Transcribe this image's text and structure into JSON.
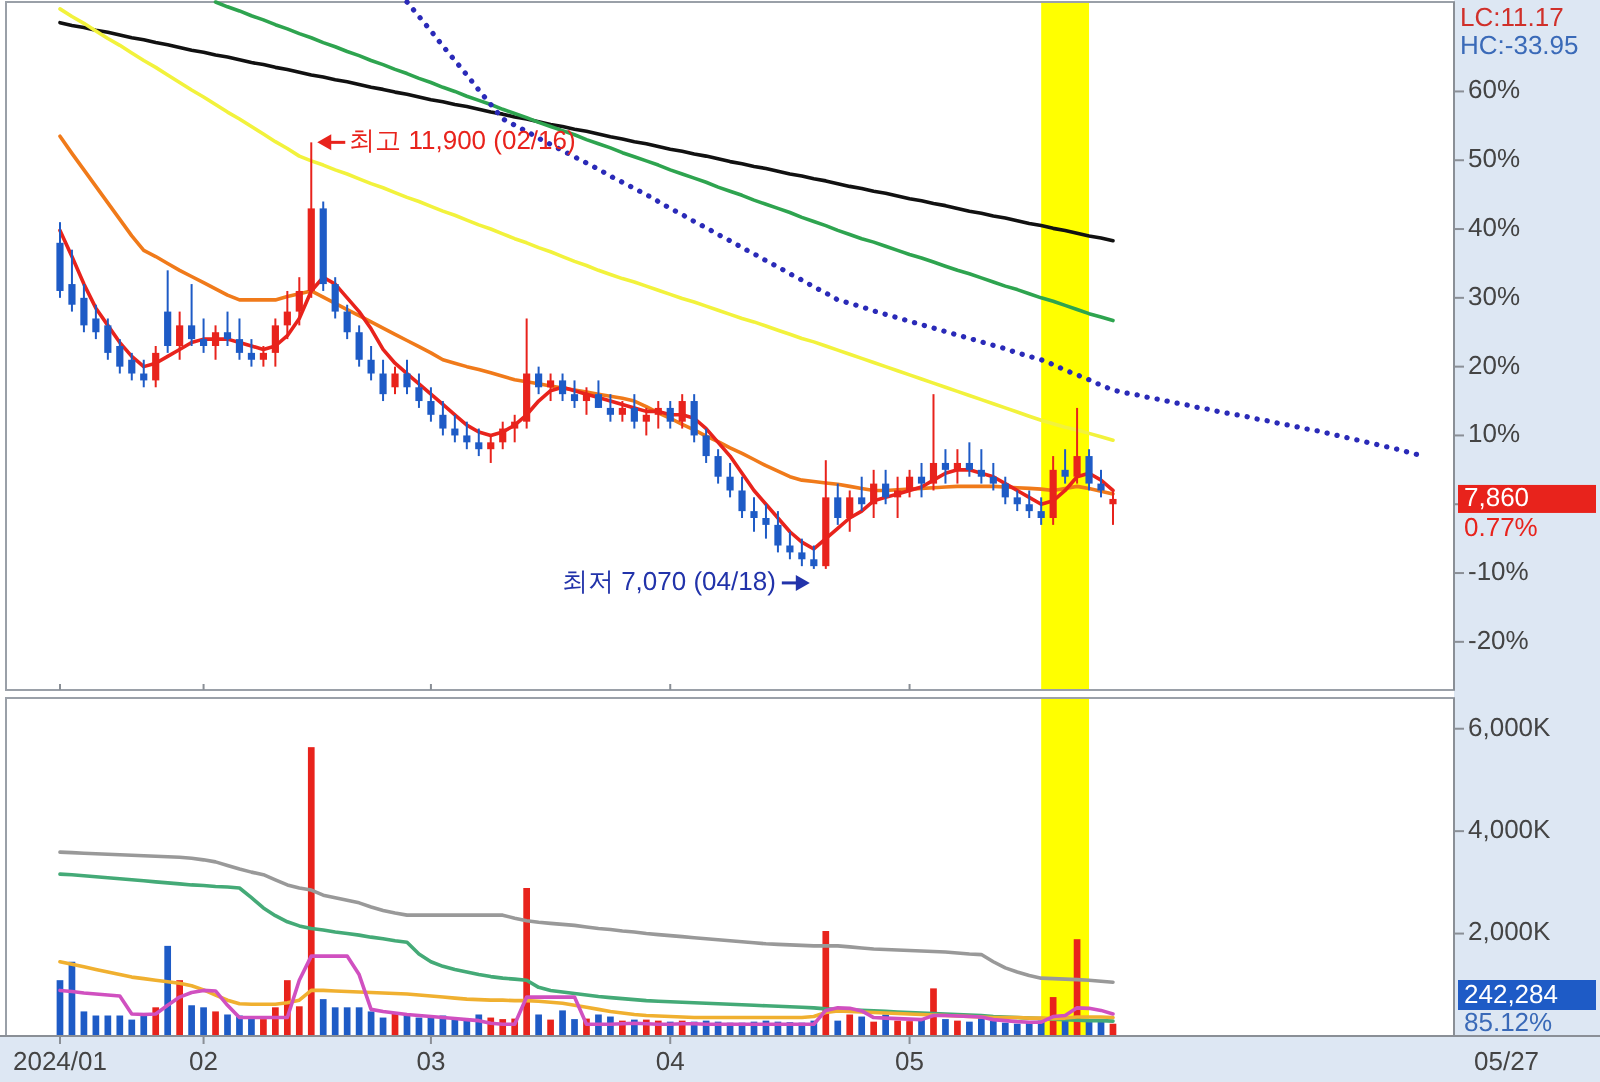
{
  "chart_data": [
    {
      "type": "candlestick",
      "tick_labels": "y",
      "ylim": [
        -27,
        73
      ],
      "yticks": [
        {
          "value": 60,
          "label": "60%"
        },
        {
          "value": 50,
          "label": "50%"
        },
        {
          "value": 40,
          "label": "40%"
        },
        {
          "value": 30,
          "label": "30%"
        },
        {
          "value": 20,
          "label": "20%"
        },
        {
          "value": 10,
          "label": "10%"
        },
        {
          "value": 0,
          "label": null
        },
        {
          "value": -10,
          "label": "-10%"
        },
        {
          "value": -20,
          "label": "-20%"
        }
      ],
      "categories": [
        "2024/01",
        null,
        null,
        null,
        null,
        null,
        null,
        null,
        null,
        null,
        null,
        null,
        "02",
        null,
        null,
        null,
        null,
        null,
        null,
        null,
        null,
        null,
        null,
        null,
        null,
        null,
        null,
        null,
        null,
        null,
        null,
        "03",
        null,
        null,
        null,
        null,
        null,
        null,
        null,
        null,
        null,
        null,
        null,
        null,
        null,
        null,
        null,
        null,
        null,
        null,
        null,
        "04",
        null,
        null,
        null,
        null,
        null,
        null,
        null,
        null,
        null,
        null,
        null,
        null,
        null,
        null,
        null,
        null,
        null,
        null,
        null,
        "05",
        null,
        null,
        null,
        null,
        null,
        null,
        null,
        null,
        null,
        null,
        null,
        null,
        null,
        null,
        null,
        null,
        null,
        null,
        null,
        null,
        null,
        null,
        null,
        null,
        null,
        null,
        null,
        null,
        null,
        null,
        null,
        null,
        null,
        null,
        null,
        null,
        null,
        null,
        null,
        null,
        null,
        null,
        null,
        null,
        null
      ],
      "ohlc": [
        [
          38,
          41,
          30,
          31
        ],
        [
          32,
          37,
          28,
          29
        ],
        [
          30,
          32,
          25,
          26
        ],
        [
          27,
          29,
          24,
          25
        ],
        [
          26,
          27,
          21,
          22
        ],
        [
          23,
          24,
          19,
          20
        ],
        [
          21,
          22,
          18,
          19
        ],
        [
          19,
          21,
          17,
          18
        ],
        [
          18,
          23,
          17,
          22
        ],
        [
          28,
          34,
          22,
          23
        ],
        [
          23,
          28,
          21,
          26
        ],
        [
          26,
          32,
          23,
          24
        ],
        [
          24,
          27,
          22,
          23
        ],
        [
          23,
          26,
          21,
          25
        ],
        [
          25,
          28,
          23,
          24
        ],
        [
          24,
          27,
          21,
          22
        ],
        [
          22,
          24,
          20,
          21
        ],
        [
          21,
          23,
          20,
          22
        ],
        [
          22,
          27,
          20,
          26
        ],
        [
          26,
          31,
          24,
          28
        ],
        [
          28,
          33,
          26,
          31
        ],
        [
          31,
          52.6,
          30,
          43
        ],
        [
          43,
          44,
          31,
          32
        ],
        [
          32,
          33,
          27,
          28
        ],
        [
          28,
          29,
          24,
          25
        ],
        [
          25,
          26,
          20,
          21
        ],
        [
          21,
          23,
          18,
          19
        ],
        [
          19,
          21,
          15,
          16
        ],
        [
          17,
          20,
          16,
          19
        ],
        [
          19,
          21,
          16,
          17
        ],
        [
          17,
          19,
          14,
          15
        ],
        [
          15,
          17,
          12,
          13
        ],
        [
          13,
          15,
          10,
          11
        ],
        [
          11,
          13,
          9,
          10
        ],
        [
          10,
          12,
          8,
          9
        ],
        [
          9,
          11,
          7,
          8
        ],
        [
          8,
          10,
          6,
          9
        ],
        [
          9,
          12,
          8,
          11
        ],
        [
          11,
          13,
          9,
          12
        ],
        [
          12,
          27,
          11,
          19
        ],
        [
          19,
          20,
          16,
          17
        ],
        [
          17,
          19,
          15,
          18
        ],
        [
          18,
          19,
          15,
          16
        ],
        [
          16,
          18,
          14,
          15
        ],
        [
          15,
          17,
          13,
          16
        ],
        [
          16,
          18,
          14,
          14
        ],
        [
          14,
          16,
          12,
          13
        ],
        [
          13,
          15,
          12,
          14
        ],
        [
          14,
          16,
          11,
          12
        ],
        [
          12,
          14,
          10,
          13
        ],
        [
          13,
          15,
          11,
          14
        ],
        [
          14,
          15,
          11,
          12
        ],
        [
          12,
          16,
          11,
          15
        ],
        [
          15,
          16,
          9,
          10
        ],
        [
          10,
          11,
          6,
          7
        ],
        [
          7,
          8,
          3,
          4
        ],
        [
          4,
          6,
          1,
          2
        ],
        [
          2,
          4,
          -2,
          -1
        ],
        [
          -1,
          1,
          -4,
          -2
        ],
        [
          -2,
          0,
          -5,
          -3
        ],
        [
          -3,
          -1,
          -7,
          -6
        ],
        [
          -6,
          -4,
          -8,
          -7
        ],
        [
          -7,
          -5,
          -9,
          -8
        ],
        [
          -8,
          -6,
          -9.4,
          -9
        ],
        [
          -9,
          6.4,
          -9.4,
          1
        ],
        [
          1,
          3,
          -3,
          -2
        ],
        [
          -2,
          2,
          -4,
          1
        ],
        [
          1,
          4,
          -1,
          0
        ],
        [
          0,
          5,
          -2,
          3
        ],
        [
          3,
          5,
          0,
          1
        ],
        [
          1,
          4,
          -2,
          2
        ],
        [
          2,
          5,
          1,
          4
        ],
        [
          4,
          6,
          1,
          3
        ],
        [
          3,
          16,
          2,
          6
        ],
        [
          6,
          8,
          3,
          5
        ],
        [
          5,
          8,
          3,
          6
        ],
        [
          6,
          9,
          4,
          5
        ],
        [
          5,
          8,
          3,
          4
        ],
        [
          4,
          6,
          2,
          3
        ],
        [
          3,
          4,
          0,
          1
        ],
        [
          1,
          2,
          -1,
          0
        ],
        [
          0,
          2,
          -2,
          -1
        ],
        [
          -1,
          1,
          -3,
          -2
        ],
        [
          -2,
          7,
          -3,
          5
        ],
        [
          5,
          8,
          3,
          4
        ],
        [
          4,
          14,
          3,
          7
        ],
        [
          7,
          8,
          2,
          3
        ],
        [
          3,
          5,
          1,
          2
        ],
        [
          0,
          2,
          -3,
          0.77
        ],
        null,
        null,
        null,
        null,
        null,
        null,
        null,
        null,
        null,
        null,
        null,
        null,
        null,
        null,
        null,
        null,
        null,
        null,
        null,
        null,
        null,
        null,
        null,
        null,
        null,
        null,
        null,
        null
      ],
      "colors": [
        "#1e5bc6",
        "#1e5bc6",
        "#1e5bc6",
        "#1e5bc6",
        "#1e5bc6",
        "#1e5bc6",
        "#1e5bc6",
        "#1e5bc6",
        "#e8231c",
        "#1e5bc6",
        "#e8231c",
        "#1e5bc6",
        "#1e5bc6",
        "#e8231c",
        "#1e5bc6",
        "#1e5bc6",
        "#1e5bc6",
        "#e8231c",
        "#e8231c",
        "#e8231c",
        "#e8231c",
        "#e8231c",
        "#1e5bc6",
        "#1e5bc6",
        "#1e5bc6",
        "#1e5bc6",
        "#1e5bc6",
        "#1e5bc6",
        "#e8231c",
        "#1e5bc6",
        "#1e5bc6",
        "#1e5bc6",
        "#1e5bc6",
        "#1e5bc6",
        "#1e5bc6",
        "#1e5bc6",
        "#e8231c",
        "#e8231c",
        "#e8231c",
        "#e8231c",
        "#1e5bc6",
        "#e8231c",
        "#1e5bc6",
        "#1e5bc6",
        "#e8231c",
        "#1e5bc6",
        "#1e5bc6",
        "#e8231c",
        "#1e5bc6",
        "#e8231c",
        "#e8231c",
        "#1e5bc6",
        "#e8231c",
        "#1e5bc6",
        "#1e5bc6",
        "#1e5bc6",
        "#1e5bc6",
        "#1e5bc6",
        "#1e5bc6",
        "#1e5bc6",
        "#1e5bc6",
        "#1e5bc6",
        "#1e5bc6",
        "#1e5bc6",
        "#e8231c",
        "#1e5bc6",
        "#e8231c",
        "#1e5bc6",
        "#e8231c",
        "#1e5bc6",
        "#e8231c",
        "#e8231c",
        "#1e5bc6",
        "#e8231c",
        "#1e5bc6",
        "#e8231c",
        "#1e5bc6",
        "#1e5bc6",
        "#1e5bc6",
        "#1e5bc6",
        "#1e5bc6",
        "#1e5bc6",
        "#1e5bc6",
        "#e8231c",
        "#1e5bc6",
        "#e8231c",
        "#1e5bc6",
        "#1e5bc6",
        "#e8231c",
        null,
        null,
        null,
        null,
        null,
        null,
        null,
        null,
        null,
        null,
        null,
        null,
        null,
        null,
        null,
        null,
        null,
        null,
        null,
        null,
        null,
        null,
        null,
        null,
        null,
        null,
        null,
        null
      ],
      "series": [
        {
          "type": "line",
          "color": "#111111",
          "values": [
            70,
            69.6,
            69.3,
            68.9,
            68.6,
            68.2,
            67.8,
            67.5,
            67.1,
            66.8,
            66.4,
            66,
            65.7,
            65.3,
            65,
            64.6,
            64.2,
            63.9,
            63.5,
            63.2,
            62.8,
            62.4,
            62.1,
            61.7,
            61.4,
            61,
            60.6,
            60.3,
            59.9,
            59.6,
            59.2,
            58.8,
            58.5,
            58.1,
            57.8,
            57.4,
            57,
            56.7,
            56.3,
            56,
            55.6,
            55.2,
            54.9,
            54.5,
            54.2,
            53.8,
            53.4,
            53.1,
            52.7,
            52.4,
            52,
            51.6,
            51.3,
            50.9,
            50.6,
            50.2,
            49.8,
            49.5,
            49.1,
            48.8,
            48.4,
            48,
            47.7,
            47.3,
            47,
            46.6,
            46.2,
            45.9,
            45.5,
            45.2,
            44.8,
            44.4,
            44.1,
            43.7,
            43.4,
            43,
            42.6,
            42.3,
            41.9,
            41.6,
            41.2,
            40.8,
            40.5,
            40.1,
            39.8,
            39.4,
            39,
            38.7,
            38.3,
            null,
            null,
            null,
            null,
            null,
            null,
            null,
            null,
            null,
            null,
            null,
            null,
            null,
            null,
            null,
            null,
            null,
            null,
            null,
            null,
            null,
            null,
            null,
            null,
            null,
            null,
            null,
            null
          ]
        },
        {
          "type": "line",
          "color": "#2ea44f",
          "values": [
            null,
            null,
            null,
            null,
            null,
            null,
            null,
            null,
            null,
            null,
            null,
            null,
            null,
            73,
            72.3,
            71.7,
            71,
            70.4,
            69.7,
            69.1,
            68.4,
            67.8,
            67.1,
            66.5,
            65.8,
            65.2,
            64.5,
            63.9,
            63.2,
            62.6,
            61.9,
            61.3,
            60.6,
            60,
            59.3,
            58.7,
            58.1,
            57.4,
            56.8,
            56.2,
            55.5,
            54.9,
            54.3,
            53.7,
            53,
            52.4,
            51.8,
            51.1,
            50.5,
            49.9,
            49.3,
            48.6,
            48,
            47.4,
            46.8,
            46.1,
            45.5,
            44.9,
            44.2,
            43.6,
            43,
            42.4,
            41.7,
            41.1,
            40.5,
            39.8,
            39.2,
            38.6,
            38.1,
            37.5,
            36.9,
            36.3,
            35.8,
            35.2,
            34.6,
            34,
            33.5,
            32.9,
            32.3,
            31.7,
            31.2,
            30.6,
            30,
            29.5,
            28.9,
            28.3,
            27.7,
            27.2,
            26.7,
            null,
            null,
            null,
            null,
            null,
            null,
            null,
            null,
            null,
            null,
            null,
            null,
            null,
            null,
            null,
            null,
            null,
            null,
            null,
            null,
            null,
            null,
            null,
            null,
            null,
            null,
            null,
            null
          ]
        },
        {
          "type": "line",
          "color": "#f2f23c",
          "values": [
            72,
            70.9,
            69.9,
            68.8,
            67.7,
            66.7,
            65.6,
            64.5,
            63.5,
            62.4,
            61.3,
            60.2,
            59.2,
            58.1,
            57,
            56,
            54.9,
            53.8,
            52.7,
            51.7,
            50.6,
            49.9,
            49.3,
            48.6,
            48,
            47.3,
            46.6,
            46,
            45.3,
            44.6,
            44,
            43.3,
            42.6,
            42,
            41.3,
            40.6,
            40,
            39.3,
            38.6,
            38,
            37.3,
            36.7,
            36,
            35.3,
            34.7,
            34,
            33.4,
            32.8,
            32.3,
            31.7,
            31.1,
            30.5,
            29.9,
            29.4,
            28.8,
            28.2,
            27.6,
            27,
            26.5,
            25.9,
            25.3,
            24.7,
            24.1,
            23.6,
            23,
            22.4,
            21.8,
            21.2,
            20.6,
            20,
            19.4,
            18.8,
            18.2,
            17.6,
            17,
            16.4,
            15.8,
            15.2,
            14.6,
            14,
            13.4,
            12.8,
            12.2,
            11.7,
            11.2,
            10.8,
            10.3,
            9.8,
            9.3,
            null,
            null,
            null,
            null,
            null,
            null,
            null,
            null,
            null,
            null,
            null,
            null,
            null,
            null,
            null,
            null,
            null,
            null,
            null,
            null,
            null,
            null,
            null,
            null,
            null,
            null,
            null,
            null
          ]
        },
        {
          "type": "line",
          "color": "#2a2ab8",
          "line_style": "dotted",
          "values": [
            null,
            null,
            null,
            null,
            null,
            null,
            null,
            null,
            null,
            null,
            null,
            null,
            null,
            null,
            null,
            null,
            null,
            null,
            null,
            null,
            null,
            null,
            null,
            null,
            null,
            null,
            null,
            null,
            null,
            73,
            70.9,
            68.8,
            66.6,
            64.5,
            62.4,
            60.2,
            58.1,
            56,
            55.1,
            54.2,
            53.2,
            52.3,
            51.4,
            50.5,
            49.6,
            48.7,
            47.7,
            46.8,
            45.9,
            45,
            44,
            43,
            42.1,
            41.1,
            40.2,
            39.2,
            38.3,
            37.3,
            36.4,
            35.4,
            34.5,
            33.5,
            32.6,
            31.6,
            30.7,
            29.7,
            29.2,
            28.7,
            28.1,
            27.6,
            27.1,
            26.6,
            26.1,
            25.6,
            25.1,
            24.6,
            24.1,
            23.6,
            23.1,
            22.6,
            22,
            21.5,
            21,
            20.3,
            19.5,
            18.8,
            18.1,
            17.3,
            16.6,
            16.2,
            15.9,
            15.5,
            15.2,
            14.8,
            14.5,
            14.1,
            13.8,
            13.4,
            13.1,
            12.8,
            12.4,
            12.1,
            11.7,
            11.4,
            11,
            10.7,
            10.3,
            9.9,
            9.5,
            9.1,
            8.7,
            8.3,
            7.9,
            7.4,
            7,
            null,
            null
          ]
        },
        {
          "type": "line",
          "color": "#f07a1a",
          "values": [
            53.5,
            51,
            48.6,
            46.2,
            43.8,
            41.4,
            39,
            36.9,
            36,
            35,
            34,
            33.1,
            32.2,
            31.3,
            30.4,
            29.7,
            29.7,
            29.7,
            29.7,
            30.2,
            30.6,
            31,
            30.1,
            29.2,
            28.3,
            27.4,
            26.5,
            25.6,
            24.7,
            23.8,
            22.9,
            22,
            21,
            20.5,
            20,
            19.6,
            19.1,
            18.6,
            18.1,
            17.8,
            17.5,
            17.2,
            16.9,
            16.6,
            16.3,
            16,
            15.7,
            15.4,
            15,
            14.2,
            13.3,
            12.5,
            11.6,
            10.8,
            9.9,
            9.1,
            8.2,
            7.4,
            6.5,
            5.6,
            4.8,
            4,
            3.5,
            3.3,
            3.1,
            2.9,
            2.6,
            2.3,
            2,
            2,
            2.1,
            2.2,
            2.3,
            2.4,
            2.5,
            2.6,
            2.6,
            2.6,
            2.6,
            2.5,
            2.4,
            2.3,
            2.2,
            2,
            2.3,
            2.6,
            2.3,
            1.9,
            1.5,
            null,
            null,
            null,
            null,
            null,
            null,
            null,
            null,
            null,
            null,
            null,
            null,
            null,
            null,
            null,
            null,
            null,
            null,
            null,
            null,
            null,
            null,
            null,
            null,
            null,
            null,
            null,
            null
          ]
        },
        {
          "type": "line",
          "color": "#e8231c",
          "values": [
            39.8,
            36,
            32,
            28.5,
            26,
            23.5,
            21.5,
            20,
            20.5,
            21.5,
            22.5,
            23.5,
            24,
            24,
            24,
            23.5,
            23,
            22.5,
            23,
            24.5,
            27,
            31,
            33,
            32,
            30,
            28,
            25.5,
            22.5,
            20.5,
            19,
            17.5,
            16,
            14.5,
            13,
            11.5,
            10.5,
            10,
            10.5,
            11.5,
            13,
            15,
            16.5,
            17,
            16.5,
            16,
            15.5,
            15,
            14.5,
            14,
            13.5,
            13.5,
            13,
            13,
            12.5,
            11,
            9,
            7,
            4.5,
            2,
            0,
            -2,
            -4,
            -5.5,
            -6.5,
            -5,
            -3.5,
            -2,
            -1,
            0.5,
            1,
            1.5,
            2,
            2.5,
            3.5,
            4.5,
            5,
            5,
            4.5,
            4,
            3,
            2,
            1,
            0,
            0.5,
            2,
            4,
            4.5,
            3.5,
            2,
            null,
            null,
            null,
            null,
            null,
            null,
            null,
            null,
            null,
            null,
            null,
            null,
            null,
            null,
            null,
            null,
            null,
            null,
            null,
            null,
            null,
            null,
            null,
            null,
            null,
            null,
            null,
            null
          ]
        }
      ],
      "annotations": [
        "최고 11,900 (02/16)",
        "최저 7,070 (04/18)",
        "LC:11.17",
        "HC:-33.95",
        "7,860",
        "0.77%"
      ]
    },
    {
      "type": "bar",
      "ylim": [
        0,
        6600
      ],
      "yticks": [
        {
          "value": 2000,
          "label": "2,000K"
        },
        {
          "value": 4000,
          "label": "4,000K"
        },
        {
          "value": 6000,
          "label": "6,000K"
        }
      ],
      "categories": [
        "2024/01",
        null,
        null,
        null,
        null,
        null,
        null,
        null,
        null,
        null,
        null,
        null,
        "02",
        null,
        null,
        null,
        null,
        null,
        null,
        null,
        null,
        null,
        null,
        null,
        null,
        null,
        null,
        null,
        null,
        null,
        null,
        "03",
        null,
        null,
        null,
        null,
        null,
        null,
        null,
        null,
        null,
        null,
        null,
        null,
        null,
        null,
        null,
        null,
        null,
        null,
        null,
        "04",
        null,
        null,
        null,
        null,
        null,
        null,
        null,
        null,
        null,
        null,
        null,
        null,
        null,
        null,
        null,
        null,
        null,
        null,
        null,
        "05",
        null,
        null,
        null,
        null,
        null,
        null,
        null,
        null,
        null,
        null,
        null,
        null,
        null,
        null,
        null,
        null,
        null,
        null,
        null,
        null,
        null,
        null,
        null,
        null,
        null,
        null,
        null,
        null,
        null,
        null,
        null,
        null,
        null,
        null,
        null,
        null,
        null,
        null,
        null,
        null,
        null,
        null,
        null,
        null,
        null
      ],
      "values": [
        1090,
        1450,
        480,
        400,
        400,
        400,
        320,
        450,
        560,
        1760,
        1090,
        600,
        560,
        480,
        420,
        400,
        360,
        330,
        560,
        1090,
        580,
        5640,
        720,
        560,
        560,
        560,
        480,
        360,
        450,
        420,
        360,
        380,
        400,
        350,
        330,
        420,
        360,
        330,
        340,
        2890,
        420,
        320,
        500,
        330,
        340,
        420,
        380,
        300,
        320,
        320,
        300,
        280,
        300,
        280,
        300,
        280,
        260,
        260,
        280,
        300,
        280,
        270,
        260,
        300,
        2050,
        300,
        420,
        380,
        280,
        420,
        300,
        290,
        330,
        930,
        330,
        300,
        280,
        380,
        300,
        260,
        240,
        260,
        300,
        760,
        330,
        1890,
        330,
        330,
        240,
        null,
        null,
        null,
        null,
        null,
        null,
        null,
        null,
        null,
        null,
        null,
        null,
        null,
        null,
        null,
        null,
        null,
        null,
        null,
        null,
        null,
        null,
        null,
        null,
        null,
        null,
        null,
        null
      ],
      "colors": [
        "#1e5bc6",
        "#1e5bc6",
        "#1e5bc6",
        "#1e5bc6",
        "#1e5bc6",
        "#1e5bc6",
        "#1e5bc6",
        "#1e5bc6",
        "#e8231c",
        "#1e5bc6",
        "#e8231c",
        "#1e5bc6",
        "#1e5bc6",
        "#e8231c",
        "#1e5bc6",
        "#1e5bc6",
        "#1e5bc6",
        "#e8231c",
        "#e8231c",
        "#e8231c",
        "#e8231c",
        "#e8231c",
        "#1e5bc6",
        "#1e5bc6",
        "#1e5bc6",
        "#1e5bc6",
        "#1e5bc6",
        "#1e5bc6",
        "#e8231c",
        "#1e5bc6",
        "#1e5bc6",
        "#1e5bc6",
        "#1e5bc6",
        "#1e5bc6",
        "#1e5bc6",
        "#1e5bc6",
        "#e8231c",
        "#e8231c",
        "#e8231c",
        "#e8231c",
        "#1e5bc6",
        "#e8231c",
        "#1e5bc6",
        "#1e5bc6",
        "#e8231c",
        "#1e5bc6",
        "#1e5bc6",
        "#e8231c",
        "#1e5bc6",
        "#e8231c",
        "#e8231c",
        "#1e5bc6",
        "#e8231c",
        "#1e5bc6",
        "#1e5bc6",
        "#1e5bc6",
        "#1e5bc6",
        "#1e5bc6",
        "#1e5bc6",
        "#1e5bc6",
        "#1e5bc6",
        "#1e5bc6",
        "#1e5bc6",
        "#1e5bc6",
        "#e8231c",
        "#1e5bc6",
        "#e8231c",
        "#1e5bc6",
        "#e8231c",
        "#1e5bc6",
        "#e8231c",
        "#e8231c",
        "#1e5bc6",
        "#e8231c",
        "#1e5bc6",
        "#e8231c",
        "#1e5bc6",
        "#1e5bc6",
        "#1e5bc6",
        "#1e5bc6",
        "#1e5bc6",
        "#1e5bc6",
        "#1e5bc6",
        "#e8231c",
        "#1e5bc6",
        "#e8231c",
        "#1e5bc6",
        "#1e5bc6",
        "#e8231c",
        null,
        null,
        null,
        null,
        null,
        null,
        null,
        null,
        null,
        null,
        null,
        null,
        null,
        null,
        null,
        null,
        null,
        null,
        null,
        null,
        null,
        null,
        null,
        null,
        null,
        null,
        null,
        null
      ],
      "series": [
        {
          "type": "line",
          "color": "#999999",
          "values": [
            3590,
            3580,
            3570,
            3560,
            3550,
            3540,
            3530,
            3520,
            3510,
            3500,
            3490,
            3470,
            3440,
            3400,
            3330,
            3260,
            3200,
            3150,
            3050,
            2950,
            2890,
            2850,
            2750,
            2700,
            2650,
            2600,
            2520,
            2450,
            2400,
            2360,
            2360,
            2360,
            2360,
            2360,
            2360,
            2360,
            2360,
            2360,
            2300,
            2250,
            2220,
            2200,
            2180,
            2160,
            2130,
            2100,
            2080,
            2050,
            2030,
            2000,
            1980,
            1960,
            1940,
            1920,
            1900,
            1880,
            1860,
            1840,
            1820,
            1800,
            1790,
            1780,
            1770,
            1760,
            1760,
            1760,
            1740,
            1720,
            1700,
            1690,
            1680,
            1670,
            1660,
            1650,
            1640,
            1620,
            1600,
            1590,
            1450,
            1330,
            1250,
            1180,
            1130,
            1120,
            1110,
            1100,
            1090,
            1070,
            1050,
            null,
            null,
            null,
            null,
            null,
            null,
            null,
            null,
            null,
            null,
            null,
            null,
            null,
            null,
            null,
            null,
            null,
            null,
            null,
            null,
            null,
            null,
            null,
            null,
            null,
            null,
            null,
            null
          ]
        },
        {
          "type": "line",
          "color": "#44aa77",
          "values": [
            3160,
            3150,
            3130,
            3110,
            3090,
            3070,
            3050,
            3030,
            3010,
            2990,
            2970,
            2950,
            2940,
            2920,
            2910,
            2890,
            2700,
            2500,
            2350,
            2230,
            2150,
            2100,
            2070,
            2030,
            2000,
            1970,
            1930,
            1900,
            1860,
            1830,
            1600,
            1450,
            1360,
            1300,
            1250,
            1200,
            1160,
            1130,
            1110,
            1090,
            950,
            890,
            860,
            830,
            800,
            770,
            750,
            730,
            710,
            690,
            680,
            670,
            660,
            650,
            640,
            630,
            620,
            610,
            600,
            590,
            580,
            570,
            560,
            550,
            530,
            520,
            510,
            500,
            490,
            480,
            470,
            460,
            450,
            440,
            430,
            420,
            410,
            400,
            380,
            370,
            360,
            350,
            340,
            330,
            320,
            310,
            300,
            300,
            290,
            null,
            null,
            null,
            null,
            null,
            null,
            null,
            null,
            null,
            null,
            null,
            null,
            null,
            null,
            null,
            null,
            null,
            null,
            null,
            null,
            null,
            null,
            null,
            null,
            null,
            null,
            null,
            null
          ]
        },
        {
          "type": "line",
          "color": "#f0b030",
          "values": [
            1450,
            1400,
            1350,
            1300,
            1250,
            1200,
            1150,
            1120,
            1090,
            1060,
            1030,
            980,
            900,
            800,
            700,
            630,
            620,
            620,
            620,
            650,
            700,
            890,
            890,
            880,
            870,
            860,
            850,
            840,
            830,
            820,
            800,
            780,
            760,
            740,
            720,
            710,
            700,
            700,
            690,
            690,
            680,
            660,
            640,
            600,
            560,
            520,
            480,
            450,
            420,
            400,
            390,
            380,
            370,
            360,
            360,
            360,
            360,
            360,
            360,
            360,
            360,
            360,
            360,
            380,
            460,
            490,
            480,
            470,
            460,
            450,
            440,
            430,
            420,
            410,
            400,
            390,
            380,
            370,
            360,
            360,
            360,
            350,
            350,
            340,
            350,
            370,
            370,
            370,
            360,
            null,
            null,
            null,
            null,
            null,
            null,
            null,
            null,
            null,
            null,
            null,
            null,
            null,
            null,
            null,
            null,
            null,
            null,
            null,
            null,
            null,
            null,
            null,
            null,
            null,
            null,
            null,
            null
          ]
        },
        {
          "type": "line",
          "color": "#d050c0",
          "values": [
            890,
            870,
            840,
            820,
            800,
            780,
            430,
            420,
            430,
            600,
            760,
            850,
            890,
            880,
            600,
            360,
            360,
            360,
            360,
            360,
            1090,
            1560,
            1560,
            1560,
            1560,
            1200,
            520,
            480,
            450,
            420,
            400,
            380,
            360,
            340,
            320,
            300,
            250,
            230,
            230,
            760,
            760,
            760,
            760,
            760,
            230,
            230,
            230,
            240,
            250,
            240,
            230,
            230,
            240,
            240,
            230,
            230,
            230,
            230,
            230,
            230,
            230,
            230,
            230,
            230,
            500,
            550,
            540,
            490,
            360,
            350,
            340,
            330,
            320,
            400,
            400,
            390,
            380,
            370,
            320,
            300,
            280,
            270,
            270,
            380,
            400,
            550,
            540,
            500,
            430,
            null,
            null,
            null,
            null,
            null,
            null,
            null,
            null,
            null,
            null,
            null,
            null,
            null,
            null,
            null,
            null,
            null,
            null,
            null,
            null,
            null,
            null,
            null,
            null,
            null,
            null,
            null,
            null
          ]
        }
      ],
      "annotations": [
        "242,284",
        "85.12%",
        "05/27"
      ]
    }
  ]
}
